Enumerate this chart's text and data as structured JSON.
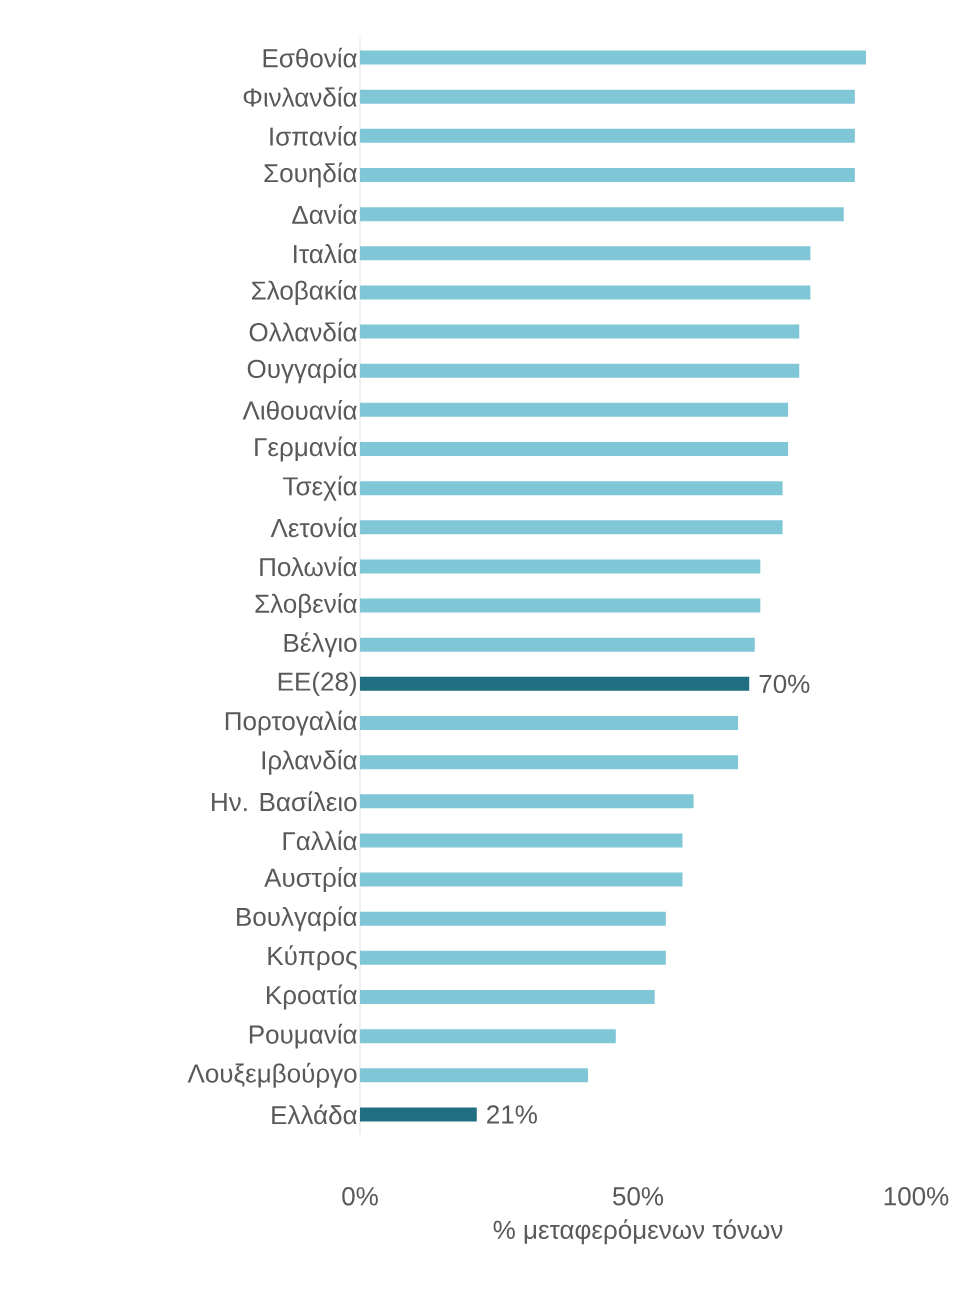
{
  "chart_data": {
    "type": "bar",
    "orientation": "horizontal",
    "xlabel": "% μεταφερόμενων τόνων",
    "categories": [
      "Εσθονία",
      "Φινλανδία",
      "Ισπανία",
      "Σουηδία",
      "Δανία",
      "Ιταλία",
      "Σλοβακία",
      "Ολλανδία",
      "Ουγγαρία",
      "Λιθουανία",
      "Γερμανία",
      "Τσεχία",
      "Λετονία",
      "Πολωνία",
      "Σλοβενία",
      "Βέλγιο",
      "ΕΕ(28)",
      "Πορτογαλία",
      "Ιρλανδία",
      "Ην. Βασίλειο",
      "Γαλλία",
      "Αυστρία",
      "Βουλγαρία",
      "Κύπρος",
      "Κροατία",
      "Ρουμανία",
      "Λουξεμβούργο",
      "Ελλάδα"
    ],
    "values": [
      91,
      89,
      89,
      89,
      87,
      81,
      81,
      79,
      79,
      77,
      77,
      76,
      76,
      72,
      72,
      71,
      70,
      68,
      68,
      60,
      58,
      58,
      55,
      55,
      53,
      46,
      41,
      21
    ],
    "colors": [
      "#7fc6d6",
      "#7fc6d6",
      "#7fc6d6",
      "#7fc6d6",
      "#7fc6d6",
      "#7fc6d6",
      "#7fc6d6",
      "#7fc6d6",
      "#7fc6d6",
      "#7fc6d6",
      "#7fc6d6",
      "#7fc6d6",
      "#7fc6d6",
      "#7fc6d6",
      "#7fc6d6",
      "#7fc6d6",
      "#1f6f80",
      "#7fc6d6",
      "#7fc6d6",
      "#7fc6d6",
      "#7fc6d6",
      "#7fc6d6",
      "#7fc6d6",
      "#7fc6d6",
      "#7fc6d6",
      "#7fc6d6",
      "#7fc6d6",
      "#1f6f80"
    ],
    "value_labels": [
      null,
      null,
      null,
      null,
      null,
      null,
      null,
      null,
      null,
      null,
      null,
      null,
      null,
      null,
      null,
      null,
      "70%",
      null,
      null,
      null,
      null,
      null,
      null,
      null,
      null,
      null,
      null,
      "21%"
    ],
    "xlim": [
      0,
      100
    ],
    "xticks": [
      {
        "value": 0,
        "label": "0%"
      },
      {
        "value": 50,
        "label": "50%"
      },
      {
        "value": 100,
        "label": "100%"
      }
    ],
    "grid": false
  }
}
